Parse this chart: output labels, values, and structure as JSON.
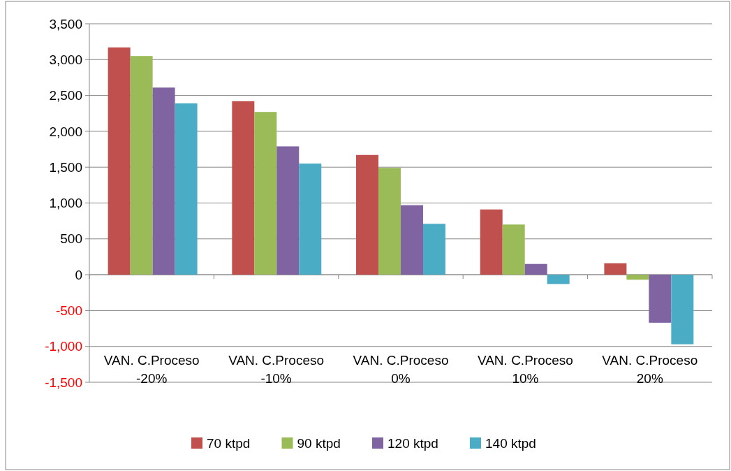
{
  "chart_data": {
    "type": "bar",
    "categories": [
      "VAN. C.Proceso -20%",
      "VAN. C.Proceso -10%",
      "VAN. C.Proceso 0%",
      "VAN. C.Proceso 10%",
      "VAN. C.Proceso 20%"
    ],
    "series": [
      {
        "name": "70 ktpd",
        "color": "#c0504d",
        "values": [
          3170,
          2420,
          1670,
          910,
          160
        ]
      },
      {
        "name": "90 ktpd",
        "color": "#9bbb59",
        "values": [
          3050,
          2270,
          1490,
          700,
          -70
        ]
      },
      {
        "name": "120 ktpd",
        "color": "#8064a2",
        "values": [
          2610,
          1790,
          970,
          150,
          -670
        ]
      },
      {
        "name": "140 ktpd",
        "color": "#4bacc6",
        "values": [
          2390,
          1550,
          710,
          -130,
          -970
        ]
      }
    ],
    "ylim": [
      -1500,
      3500
    ],
    "yticks": [
      {
        "value": -1500,
        "label": "-1,500"
      },
      {
        "value": -1000,
        "label": "-1,000"
      },
      {
        "value": -500,
        "label": "-500"
      },
      {
        "value": 0,
        "label": "0"
      },
      {
        "value": 500,
        "label": "500"
      },
      {
        "value": 1000,
        "label": "1,000"
      },
      {
        "value": 1500,
        "label": "1,500"
      },
      {
        "value": 2000,
        "label": "2,000"
      },
      {
        "value": 2500,
        "label": "2,500"
      },
      {
        "value": 3000,
        "label": "3,000"
      },
      {
        "value": 3500,
        "label": "3,500"
      }
    ],
    "grid": "y",
    "legend": "bottom"
  }
}
